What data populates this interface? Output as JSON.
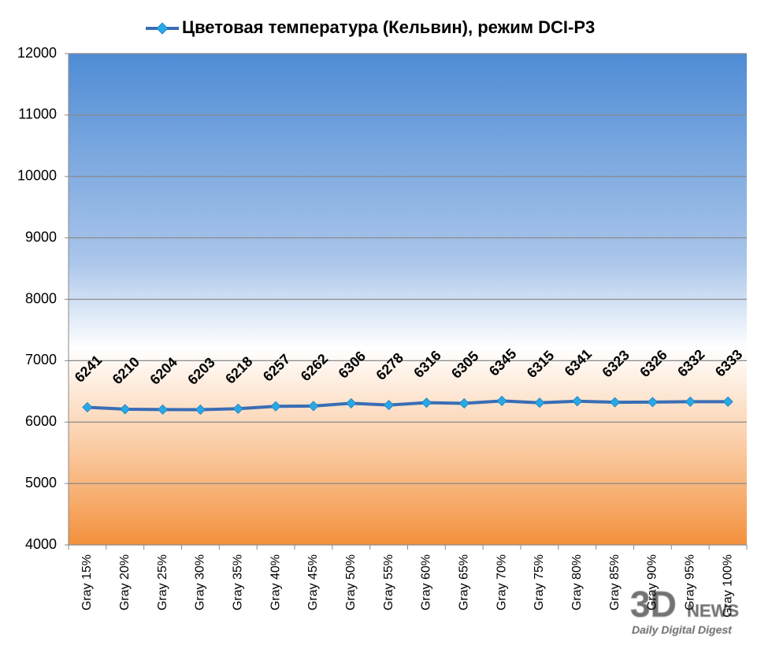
{
  "chart_data": {
    "type": "line",
    "categories": [
      "Gray 15%",
      "Gray 20%",
      "Gray 25%",
      "Gray 30%",
      "Gray 35%",
      "Gray 40%",
      "Gray 45%",
      "Gray 50%",
      "Gray 55%",
      "Gray 60%",
      "Gray 65%",
      "Gray 70%",
      "Gray 75%",
      "Gray 80%",
      "Gray 85%",
      "Gray 90%",
      "Gray 95%",
      "Gray 100%"
    ],
    "series": [
      {
        "name": "Цветовая температура (Кельвин), режим DCI-P3",
        "color": "#3a6db5",
        "marker_color": "#29a8e6",
        "values": [
          6241,
          6210,
          6204,
          6203,
          6218,
          6257,
          6262,
          6306,
          6278,
          6316,
          6305,
          6345,
          6315,
          6341,
          6323,
          6326,
          6332,
          6333
        ]
      }
    ],
    "ylim": [
      4000,
      12000
    ],
    "yticks": [
      4000,
      5000,
      6000,
      7000,
      8000,
      9000,
      10000,
      11000,
      12000
    ],
    "grid": true,
    "legend": "top"
  },
  "watermark": [
    "3D",
    "NEWS",
    "Daily Digital Digest"
  ]
}
